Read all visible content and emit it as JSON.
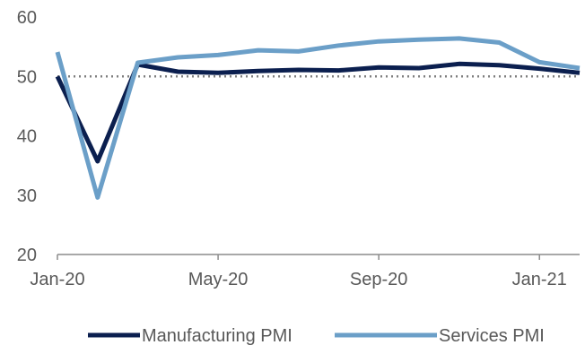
{
  "chart_data": {
    "type": "line",
    "title": "",
    "xlabel": "",
    "ylabel": "",
    "x": [
      "Jan-20",
      "Feb-20",
      "Mar-20",
      "Apr-20",
      "May-20",
      "Jun-20",
      "Jul-20",
      "Aug-20",
      "Sep-20",
      "Oct-20",
      "Nov-20",
      "Dec-20",
      "Jan-21",
      "Feb-21"
    ],
    "x_tick_labels": [
      "Jan-20",
      "May-20",
      "Sep-20",
      "Jan-21"
    ],
    "y_ticks": [
      20,
      30,
      40,
      50,
      60
    ],
    "ylim": [
      20,
      60
    ],
    "reference_line": {
      "value": 50,
      "style": "dotted",
      "color": "#7f7f7f"
    },
    "series": [
      {
        "name": "Manufacturing PMI",
        "color": "#0b1f4f",
        "values": [
          50.0,
          35.7,
          52.0,
          50.8,
          50.6,
          50.9,
          51.1,
          51.0,
          51.5,
          51.4,
          52.1,
          51.9,
          51.3,
          50.6
        ]
      },
      {
        "name": "Services PMI",
        "color": "#6b9fc8",
        "values": [
          54.1,
          29.6,
          52.3,
          53.2,
          53.6,
          54.4,
          54.2,
          55.2,
          55.9,
          56.2,
          56.4,
          55.7,
          52.4,
          51.4
        ]
      }
    ],
    "grid": false,
    "legend_position": "bottom"
  }
}
